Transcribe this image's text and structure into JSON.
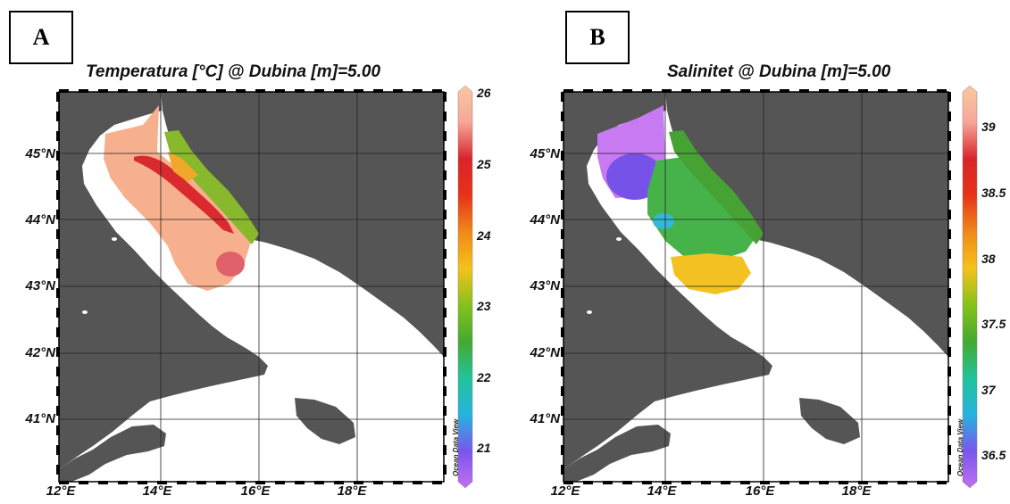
{
  "colors": {
    "land": "#555555",
    "sea": "#ffffff",
    "grid": "#222222",
    "colorbar_stops": [
      "#c070f0",
      "#7a55ee",
      "#27b3e0",
      "#21c39a",
      "#44aa30",
      "#86c21b",
      "#f3c21a",
      "#f08a17",
      "#e63318",
      "#d8242a",
      "#f7a79a",
      "#f8c8a0"
    ]
  },
  "panels": [
    {
      "letter": "A",
      "title": "Temperatura [°C] @ Dubina [m]=5.00",
      "colorbar": {
        "ticks": [
          "26",
          "25",
          "24",
          "23",
          "22",
          "21"
        ],
        "min": 20.5,
        "max": 26.1
      },
      "watermark": "Ocean Data View",
      "lat_labels": [
        "45°N",
        "44°N",
        "43°N",
        "42°N",
        "41°N"
      ],
      "lon_labels": [
        "12°E",
        "14°E",
        "16°E",
        "18°E"
      ],
      "field_colors": {
        "main": "#f6b08e",
        "coast_band": "#d92a30",
        "croatia": "#88b82c",
        "south_patch": "#e0616a"
      }
    },
    {
      "letter": "B",
      "title": "Salinitet @ Dubina [m]=5.00",
      "colorbar": {
        "ticks": [
          "39",
          "38.5",
          "38",
          "37.5",
          "37",
          "36.5"
        ],
        "min": 36.25,
        "max": 39.25
      },
      "watermark": "Ocean Data View",
      "lat_labels": [
        "45°N",
        "44°N",
        "43°N",
        "42°N",
        "41°N"
      ],
      "lon_labels": [
        "12°E",
        "14°E",
        "16°E",
        "18°E"
      ],
      "field_colors": {
        "north": "#c87af2",
        "west": "#7752e8",
        "central": "#46b34a",
        "croatia": "#46a233",
        "south": "#f3c122",
        "cyan_spot": "#33b8d8"
      }
    }
  ]
}
